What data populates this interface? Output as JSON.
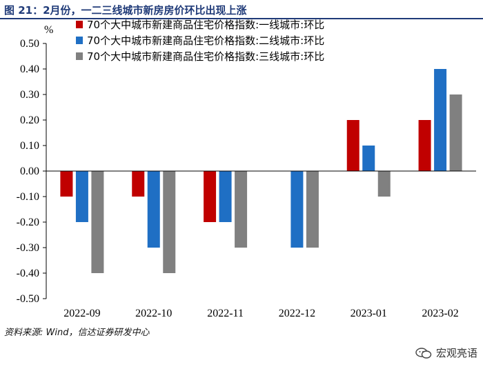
{
  "figure_title": "图 21：2月份，一二三线城市新房房价环比出现上涨",
  "source_note": "资料来源: Wind，信达证券研发中心",
  "watermark": "宏观亮语",
  "unit": "%",
  "chart_data": {
    "type": "bar",
    "title": "",
    "xlabel": "",
    "ylabel": "%",
    "categories": [
      "2022-09",
      "2022-10",
      "2022-11",
      "2022-12",
      "2023-01",
      "2023-02"
    ],
    "ylim": [
      -0.5,
      0.5
    ],
    "yticks": [
      0.5,
      0.4,
      0.3,
      0.2,
      0.1,
      0.0,
      -0.1,
      -0.2,
      -0.3,
      -0.4,
      -0.5
    ],
    "ytick_labels": [
      "0.50",
      "0.40",
      "0.30",
      "0.20",
      "0.10",
      "0.00",
      "-0.10",
      "-0.20",
      "-0.30",
      "-0.40",
      "-0.50"
    ],
    "grid": false,
    "legend_position": "top-left",
    "series": [
      {
        "name": "70个大中城市新建商品住宅价格指数:一线城市:环比",
        "color": "#c00000",
        "values": [
          -0.1,
          -0.1,
          -0.2,
          0.0,
          0.2,
          0.2
        ]
      },
      {
        "name": "70个大中城市新建商品住宅价格指数:二线城市:环比",
        "color": "#1f6fc4",
        "values": [
          -0.2,
          -0.3,
          -0.2,
          -0.3,
          0.1,
          0.4
        ]
      },
      {
        "name": "70个大中城市新建商品住宅价格指数:三线城市:环比",
        "color": "#808080",
        "values": [
          -0.4,
          -0.4,
          -0.3,
          -0.3,
          -0.1,
          0.3
        ]
      }
    ]
  }
}
